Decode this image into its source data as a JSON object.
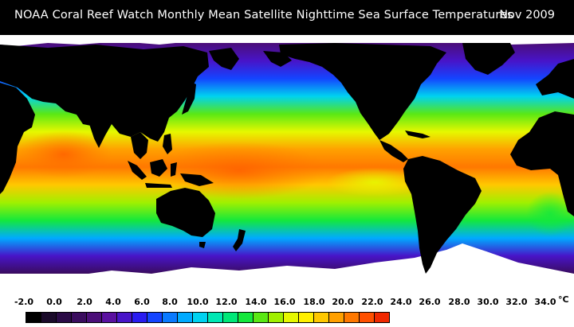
{
  "header": {
    "title": "NOAA Coral Reef Watch Monthly Mean Satellite Nighttime Sea Surface Temperatures",
    "date": "Nov 2009"
  },
  "legend": {
    "unit": "°C",
    "tick_labels": [
      "-2.0",
      "0.0",
      "2.0",
      "4.0",
      "6.0",
      "8.0",
      "10.0",
      "12.0",
      "14.0",
      "16.0",
      "18.0",
      "20.0",
      "22.0",
      "24.0",
      "26.0",
      "28.0",
      "30.0",
      "32.0",
      "34.0"
    ],
    "colors": [
      "#000000",
      "#1a0a2a",
      "#2a0a46",
      "#3a0c5e",
      "#4b0e78",
      "#5a10a0",
      "#4814c8",
      "#2a1cf0",
      "#1444ff",
      "#0a7aff",
      "#00aaff",
      "#00d2f0",
      "#00e8b4",
      "#00e878",
      "#14e83c",
      "#5ae814",
      "#a0f000",
      "#e6f800",
      "#fff000",
      "#ffc800",
      "#ffa000",
      "#ff7800",
      "#ff5000",
      "#f02800"
    ]
  },
  "map": {
    "ocean_gradient": [
      {
        "lat": "84N",
        "color": "#4b0e78"
      },
      {
        "lat": "70N",
        "color": "#4814c8"
      },
      {
        "lat": "55N",
        "color": "#1444ff"
      },
      {
        "lat": "45N",
        "color": "#00d2f0"
      },
      {
        "lat": "35N",
        "color": "#5ae814"
      },
      {
        "lat": "25N",
        "color": "#e6f800"
      },
      {
        "lat": "10N",
        "color": "#ffa000"
      },
      {
        "lat": "0",
        "color": "#ff7800"
      },
      {
        "lat": "15S",
        "color": "#ffc800"
      },
      {
        "lat": "25S",
        "color": "#a0f000"
      },
      {
        "lat": "35S",
        "color": "#14e83c"
      },
      {
        "lat": "45S",
        "color": "#00aaff"
      },
      {
        "lat": "55S",
        "color": "#4814c8"
      },
      {
        "lat": "65S",
        "color": "#3a0c5e"
      }
    ],
    "land_color": "#000000",
    "ice_color": "#ffffff"
  }
}
